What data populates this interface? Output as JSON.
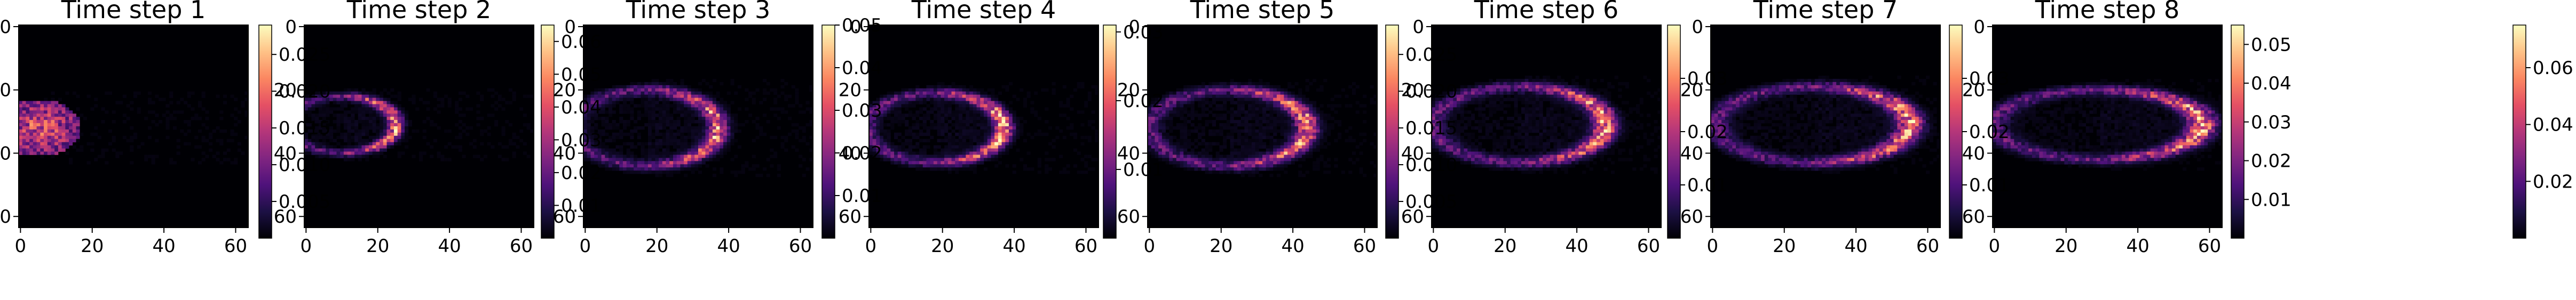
{
  "figure": {
    "colormap": "magma",
    "colormap_stops": [
      "#000004",
      "#1c1044",
      "#4f127b",
      "#812581",
      "#b5367a",
      "#e55064",
      "#fb8761",
      "#fec287",
      "#fcfdbf"
    ]
  },
  "chart_data": [
    {
      "type": "heatmap",
      "title": "Time step 1",
      "grid_size": 64,
      "xlim": [
        0,
        63
      ],
      "ylim": [
        63,
        0
      ],
      "x_ticks": [
        "0",
        "20",
        "40",
        "60"
      ],
      "y_ticks": [
        "0",
        "20",
        "40",
        "60"
      ],
      "colorbar": {
        "range": [
          0.0,
          0.029
        ],
        "ticks": [
          0.005,
          0.01,
          0.015,
          0.02,
          0.025
        ],
        "tick_labels": [
          "0.005",
          "0.010",
          "0.015",
          "0.020",
          "0.025"
        ]
      },
      "feature": {
        "description_key": "tip-blob",
        "cx": 5,
        "cy": 32,
        "rx": 12,
        "ry": 9,
        "peak": 0.026
      }
    },
    {
      "type": "heatmap",
      "title": "Time step 2",
      "grid_size": 64,
      "xlim": [
        0,
        63
      ],
      "ylim": [
        63,
        0
      ],
      "x_ticks": [
        "0",
        "20",
        "40",
        "60"
      ],
      "y_ticks": [
        "0",
        "20",
        "40",
        "60"
      ],
      "colorbar": {
        "range": [
          0.0,
          0.065
        ],
        "ticks": [
          0.01,
          0.02,
          0.03,
          0.04,
          0.05,
          0.06
        ],
        "tick_labels": [
          "0.01",
          "0.02",
          "0.03",
          "0.04",
          "0.05",
          "0.06"
        ]
      },
      "feature": {
        "description_key": "ring",
        "cx": 10,
        "cy": 31,
        "rx": 15,
        "ry": 9,
        "peak": 0.06
      }
    },
    {
      "type": "heatmap",
      "title": "Time step 3",
      "grid_size": 64,
      "xlim": [
        0,
        63
      ],
      "ylim": [
        63,
        0
      ],
      "x_ticks": [
        "0",
        "20",
        "40",
        "60"
      ],
      "y_ticks": [
        "0",
        "20",
        "40",
        "60"
      ],
      "colorbar": {
        "range": [
          0.0,
          0.05
        ],
        "ticks": [
          0.01,
          0.02,
          0.03,
          0.04,
          0.05
        ],
        "tick_labels": [
          "0.01",
          "0.02",
          "0.03",
          "0.04",
          "0.05"
        ]
      },
      "feature": {
        "description_key": "ring",
        "cx": 17,
        "cy": 32,
        "rx": 20,
        "ry": 12,
        "peak": 0.045
      }
    },
    {
      "type": "heatmap",
      "title": "Time step 4",
      "grid_size": 64,
      "xlim": [
        0,
        63
      ],
      "ylim": [
        63,
        0
      ],
      "x_ticks": [
        "0",
        "20",
        "40",
        "60"
      ],
      "y_ticks": [
        "0",
        "20",
        "40",
        "60"
      ],
      "colorbar": {
        "range": [
          0.0,
          0.031
        ],
        "ticks": [
          0.01,
          0.02,
          0.03
        ],
        "tick_labels": [
          "0.01",
          "0.02",
          "0.03"
        ]
      },
      "feature": {
        "description_key": "ring",
        "cx": 18,
        "cy": 32,
        "rx": 19,
        "ry": 11,
        "peak": 0.03
      }
    },
    {
      "type": "heatmap",
      "title": "Time step 5",
      "grid_size": 64,
      "xlim": [
        0,
        63
      ],
      "ylim": [
        63,
        0
      ],
      "x_ticks": [
        "0",
        "20",
        "40",
        "60"
      ],
      "y_ticks": [
        "0",
        "20",
        "40",
        "60"
      ],
      "colorbar": {
        "range": [
          0.0,
          0.029
        ],
        "ticks": [
          0.005,
          0.01,
          0.015,
          0.02,
          0.025
        ],
        "tick_labels": [
          "0.005",
          "0.010",
          "0.015",
          "0.020",
          "0.025"
        ]
      },
      "feature": {
        "description_key": "ring",
        "cx": 22,
        "cy": 32,
        "rx": 22,
        "ry": 12,
        "peak": 0.027
      }
    },
    {
      "type": "heatmap",
      "title": "Time step 6",
      "grid_size": 64,
      "xlim": [
        0,
        63
      ],
      "ylim": [
        63,
        0
      ],
      "x_ticks": [
        "0",
        "20",
        "40",
        "60"
      ],
      "y_ticks": [
        "0",
        "20",
        "40",
        "60"
      ],
      "colorbar": {
        "range": [
          0.0,
          0.04
        ],
        "ticks": [
          0.01,
          0.02,
          0.03
        ],
        "tick_labels": [
          "0.01",
          "0.02",
          "0.03"
        ]
      },
      "feature": {
        "description_key": "ring",
        "cx": 24,
        "cy": 31,
        "rx": 24,
        "ry": 12,
        "peak": 0.038
      }
    },
    {
      "type": "heatmap",
      "title": "Time step 7",
      "grid_size": 64,
      "xlim": [
        0,
        63
      ],
      "ylim": [
        63,
        0
      ],
      "x_ticks": [
        "0",
        "20",
        "40",
        "60"
      ],
      "y_ticks": [
        "0",
        "20",
        "40",
        "60"
      ],
      "colorbar": {
        "range": [
          0.0,
          0.04
        ],
        "ticks": [
          0.01,
          0.02,
          0.03
        ],
        "tick_labels": [
          "0.01",
          "0.02",
          "0.03"
        ]
      },
      "feature": {
        "description_key": "ring",
        "cx": 28,
        "cy": 31,
        "rx": 27,
        "ry": 12,
        "peak": 0.038
      }
    },
    {
      "type": "heatmap",
      "title": "Time step 8",
      "grid_size": 64,
      "xlim": [
        0,
        63
      ],
      "ylim": [
        63,
        0
      ],
      "x_ticks": [
        "0",
        "20",
        "40",
        "60"
      ],
      "y_ticks": [
        "0",
        "20",
        "40",
        "60"
      ],
      "colorbar": {
        "range": [
          0.0,
          0.055
        ],
        "ticks": [
          0.01,
          0.02,
          0.03,
          0.04,
          0.05
        ],
        "tick_labels": [
          "0.01",
          "0.02",
          "0.03",
          "0.04",
          "0.05"
        ]
      },
      "feature": {
        "description_key": "ring",
        "cx": 29,
        "cy": 31,
        "rx": 29,
        "ry": 11,
        "peak": 0.052
      }
    },
    {
      "type": "heatmap",
      "title": "",
      "grid_size": 0,
      "xlim": [
        0,
        63
      ],
      "ylim": [
        63,
        0
      ],
      "x_ticks": [],
      "y_ticks": [],
      "colorbar": {
        "range": [
          0.0,
          0.075
        ],
        "ticks": [
          0.02,
          0.04,
          0.06
        ],
        "tick_labels": [
          "0.02",
          "0.04",
          "0.06"
        ]
      },
      "feature": {
        "description_key": "colorbar-only",
        "cx": 0,
        "cy": 0,
        "rx": 0,
        "ry": 0,
        "peak": 0.0
      }
    }
  ]
}
